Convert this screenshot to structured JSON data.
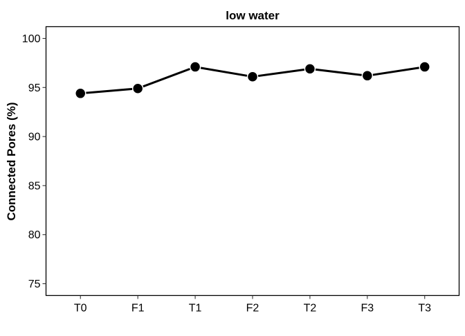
{
  "chart_data": {
    "type": "line",
    "title": "low water",
    "xlabel": "",
    "ylabel": "Connected Pores (%)",
    "categories": [
      "T0",
      "F1",
      "T1",
      "F2",
      "T2",
      "F3",
      "T3"
    ],
    "series": [
      {
        "values": [
          94.4,
          94.9,
          97.1,
          96.1,
          96.9,
          96.2,
          97.1
        ]
      }
    ],
    "ylim": [
      73.8,
      101.2
    ],
    "yticks": [
      75,
      80,
      85,
      90,
      95,
      100
    ],
    "grid": false,
    "line_color": "#000000",
    "marker_color": "#000000",
    "marker_stroke": "#ffffff"
  }
}
